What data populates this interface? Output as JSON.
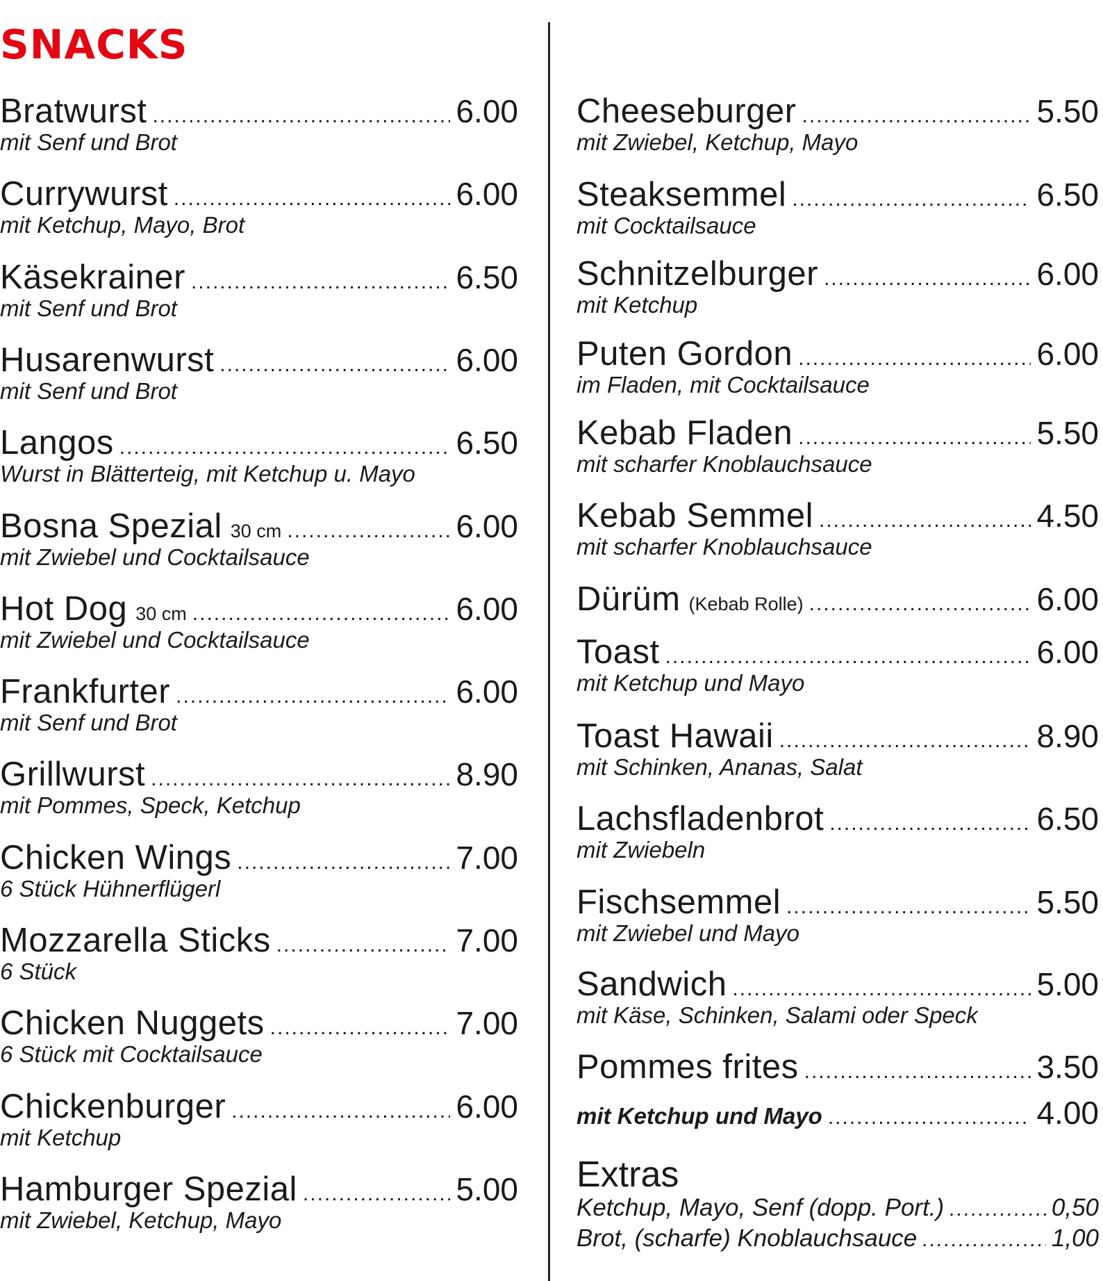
{
  "title": "SNACKS",
  "accent_color": "#e30613",
  "left_items": [
    {
      "name": "Bratwurst",
      "size": "",
      "price": "6.00",
      "desc": "mit Senf und Brot"
    },
    {
      "name": "Currywurst",
      "size": "",
      "price": "6.00",
      "desc": "mit Ketchup, Mayo, Brot"
    },
    {
      "name": "Käsekrainer",
      "size": "",
      "price": "6.50",
      "desc": "mit Senf und Brot"
    },
    {
      "name": "Husarenwurst",
      "size": "",
      "price": "6.00",
      "desc": "mit Senf und Brot"
    },
    {
      "name": "Langos",
      "size": "",
      "price": "6.50",
      "desc": "Wurst in Blätterteig, mit Ketchup u. Mayo"
    },
    {
      "name": "Bosna Spezial",
      "size": "30 cm",
      "price": "6.00",
      "desc": "mit Zwiebel und Cocktailsauce"
    },
    {
      "name": "Hot Dog",
      "size": "30 cm",
      "price": "6.00",
      "desc": "mit Zwiebel und Cocktailsauce"
    },
    {
      "name": "Frankfurter",
      "size": "",
      "price": "6.00",
      "desc": "mit Senf und Brot"
    },
    {
      "name": "Grillwurst",
      "size": "",
      "price": "8.90",
      "desc": "mit Pommes, Speck, Ketchup"
    },
    {
      "name": "Chicken Wings",
      "size": "",
      "price": "7.00",
      "desc": "6 Stück Hühnerflügerl"
    },
    {
      "name": "Mozzarella Sticks",
      "size": "",
      "price": "7.00",
      "desc": "6 Stück"
    },
    {
      "name": "Chicken Nuggets",
      "size": "",
      "price": "7.00",
      "desc": "6 Stück mit Cocktailsauce"
    },
    {
      "name": "Chickenburger",
      "size": "",
      "price": "6.00",
      "desc": "mit Ketchup"
    },
    {
      "name": "Hamburger Spezial",
      "size": "",
      "price": "5.00",
      "desc": "mit Zwiebel, Ketchup, Mayo"
    }
  ],
  "right_items": [
    {
      "name": "Cheeseburger",
      "size": "",
      "price": "5.50",
      "desc": "mit Zwiebel, Ketchup, Mayo"
    },
    {
      "name": "Steaksemmel",
      "size": "",
      "price": "6.50",
      "desc": "mit Cocktailsauce"
    },
    {
      "name": "Schnitzelburger",
      "size": "",
      "price": "6.00",
      "desc": "mit Ketchup"
    },
    {
      "name": "Puten Gordon",
      "size": "",
      "price": "6.00",
      "desc": "im Fladen, mit Cocktailsauce"
    },
    {
      "name": "Kebab Fladen",
      "size": "",
      "price": "5.50",
      "desc": "mit scharfer Knoblauchsauce"
    },
    {
      "name": "Kebab Semmel",
      "size": "",
      "price": "4.50",
      "desc": "mit scharfer Knoblauchsauce"
    },
    {
      "name": "Dürüm",
      "size": "(Kebab Rolle)",
      "price": "6.00",
      "desc": ""
    },
    {
      "name": "Toast",
      "size": "",
      "price": "6.00",
      "desc": "mit Ketchup und Mayo"
    },
    {
      "name": "Toast Hawaii",
      "size": "",
      "price": "8.90",
      "desc": "mit Schinken, Ananas, Salat"
    },
    {
      "name": "Lachsfladenbrot",
      "size": "",
      "price": "6.50",
      "desc": "mit Zwiebeln"
    },
    {
      "name": "Fischsemmel",
      "size": "",
      "price": "5.50",
      "desc": "mit Zwiebel und Mayo"
    },
    {
      "name": "Sandwich",
      "size": "",
      "price": "5.00",
      "desc": "mit Käse, Schinken, Salami oder Speck"
    },
    {
      "name": "Pommes frites",
      "size": "",
      "price": "3.50",
      "desc": ""
    }
  ],
  "pommes_option": {
    "label": "mit Ketchup und Mayo",
    "price": "4.00"
  },
  "extras": {
    "title": "Extras",
    "items": [
      {
        "label": "Ketchup, Mayo, Senf (dopp. Port.)",
        "price": "0,50"
      },
      {
        "label": "Brot, (scharfe) Knoblauchsauce",
        "price": "1,00"
      }
    ]
  }
}
